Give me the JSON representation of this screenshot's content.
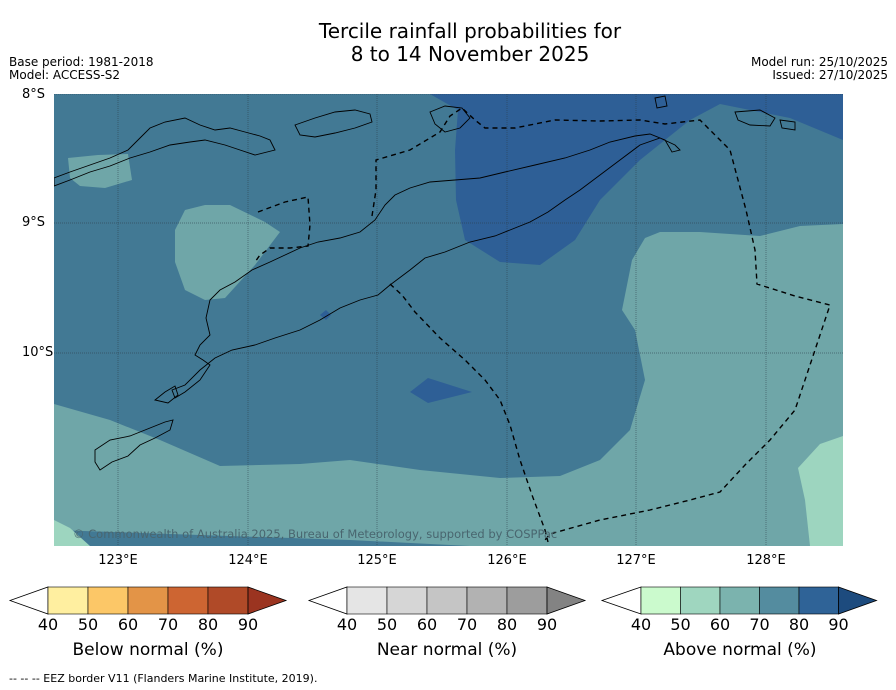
{
  "title": {
    "line1": "Tercile rainfall probabilities for",
    "line2": "8 to 14 November 2025"
  },
  "meta_left": {
    "base_period": "Base period: 1981-2018",
    "model": "Model: ACCESS-S2"
  },
  "meta_right": {
    "model_run": "Model run: 25/10/2025",
    "issued": "Issued: 27/10/2025"
  },
  "lat_labels": [
    "8°S",
    "9°S",
    "10°S"
  ],
  "lon_labels": [
    "123°E",
    "124°E",
    "125°E",
    "126°E",
    "127°E",
    "128°E"
  ],
  "copyright": "© Commonwealth of Australia 2025, Bureau of Meteorology, supported by COSPPac",
  "colors": {
    "above_50": "#9dd5bf",
    "above_60": "#6fa6a8",
    "above_70": "#427994",
    "above_80": "#2e5f96",
    "coast": "#000000",
    "grid": "#2b3a45"
  },
  "colorbars": [
    {
      "title": "Below normal (%)",
      "ticks": [
        "40",
        "50",
        "60",
        "70",
        "80",
        "90"
      ],
      "colors": [
        "#ffefa0",
        "#fcc767",
        "#e39447",
        "#cd6532",
        "#b04a28",
        "#9b3420"
      ]
    },
    {
      "title": "Near normal (%)",
      "ticks": [
        "40",
        "50",
        "60",
        "70",
        "80",
        "90"
      ],
      "colors": [
        "#e5e5e5",
        "#d6d6d6",
        "#c5c5c5",
        "#b2b2b2",
        "#9d9d9d",
        "#838383"
      ]
    },
    {
      "title": "Above normal (%)",
      "ticks": [
        "40",
        "50",
        "60",
        "70",
        "80",
        "90"
      ],
      "colors": [
        "#cbfacd",
        "#9fd6bf",
        "#7bb3ae",
        "#548c9f",
        "#2f6397",
        "#1d4b7e"
      ]
    }
  ],
  "footnote": "--  --  -- EEZ border V11 (Flanders Marine Institute, 2019)."
}
